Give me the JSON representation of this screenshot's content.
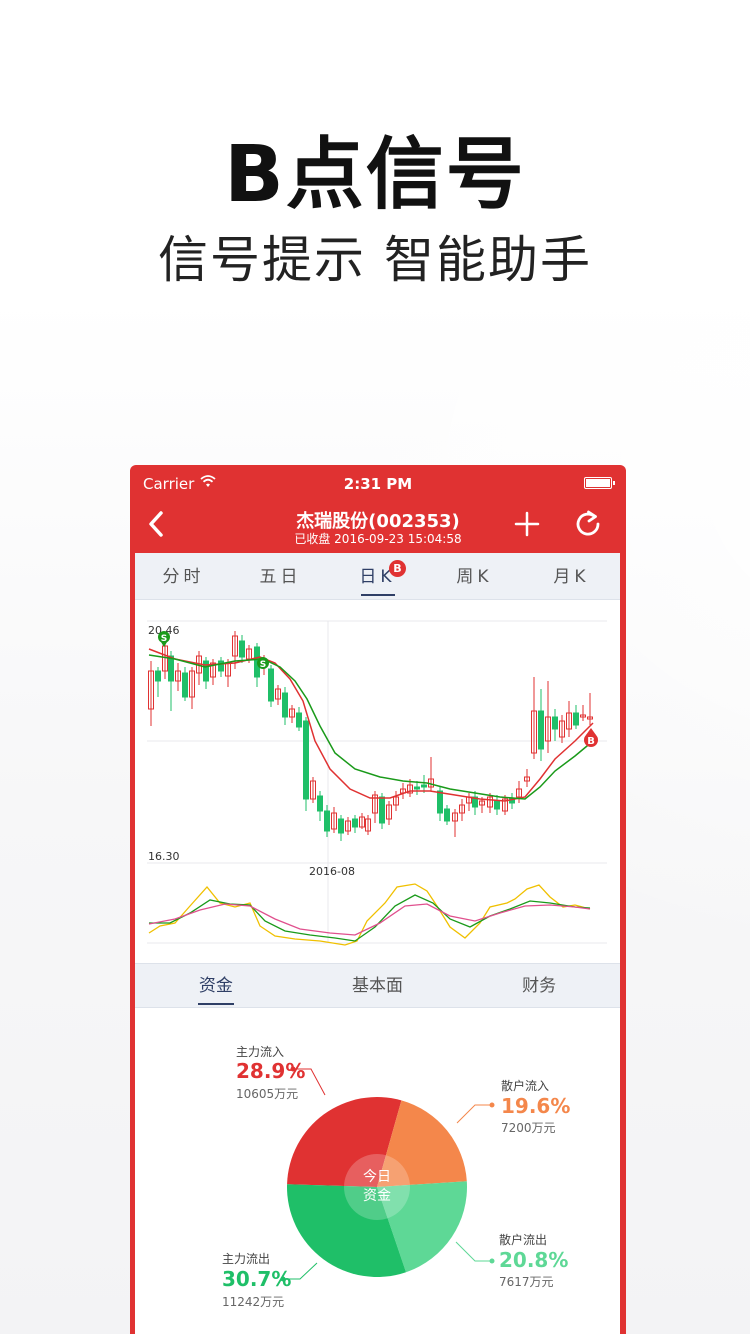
{
  "hero": {
    "title": "B点信号",
    "subtitle": "信号提示 智能助手"
  },
  "statusbar": {
    "carrier": "Carrier",
    "time": "2:31 PM"
  },
  "navbar": {
    "title": "杰瑞股份(002353)",
    "subtitle": "已收盘 2016-09-23 15:04:58"
  },
  "ktabs": [
    {
      "label": "分时"
    },
    {
      "label": "五日"
    },
    {
      "label": "日K",
      "badge": "B",
      "active": true
    },
    {
      "label": "周K"
    },
    {
      "label": "月K"
    }
  ],
  "chart": {
    "price_high_label": "20.46",
    "price_low_label": "16.30",
    "date_label": "2016-08",
    "signal_sell_1": "S",
    "signal_sell_2": "S",
    "signal_buy": "B"
  },
  "ftabs": [
    {
      "label": "资金",
      "active": true
    },
    {
      "label": "基本面"
    },
    {
      "label": "财务"
    }
  ],
  "funds": {
    "center_line1": "今日",
    "center_line2": "资金",
    "main_in": {
      "title": "主力流入",
      "pct": "28.9%",
      "amount": "10605万元",
      "value": 28.9
    },
    "retail_in": {
      "title": "散户流入",
      "pct": "19.6%",
      "amount": "7200万元",
      "value": 19.6
    },
    "retail_out": {
      "title": "散户流出",
      "pct": "20.8%",
      "amount": "7617万元",
      "value": 20.8
    },
    "main_out": {
      "title": "主力流出",
      "pct": "30.7%",
      "amount": "11242万元",
      "value": 30.7
    }
  },
  "colors": {
    "brand_red": "#e03232",
    "main_in": "#e03232",
    "retail_in": "#f4874b",
    "retail_out": "#5ed896",
    "main_out": "#1fbf68",
    "nav_active": "#2f3f66"
  }
}
